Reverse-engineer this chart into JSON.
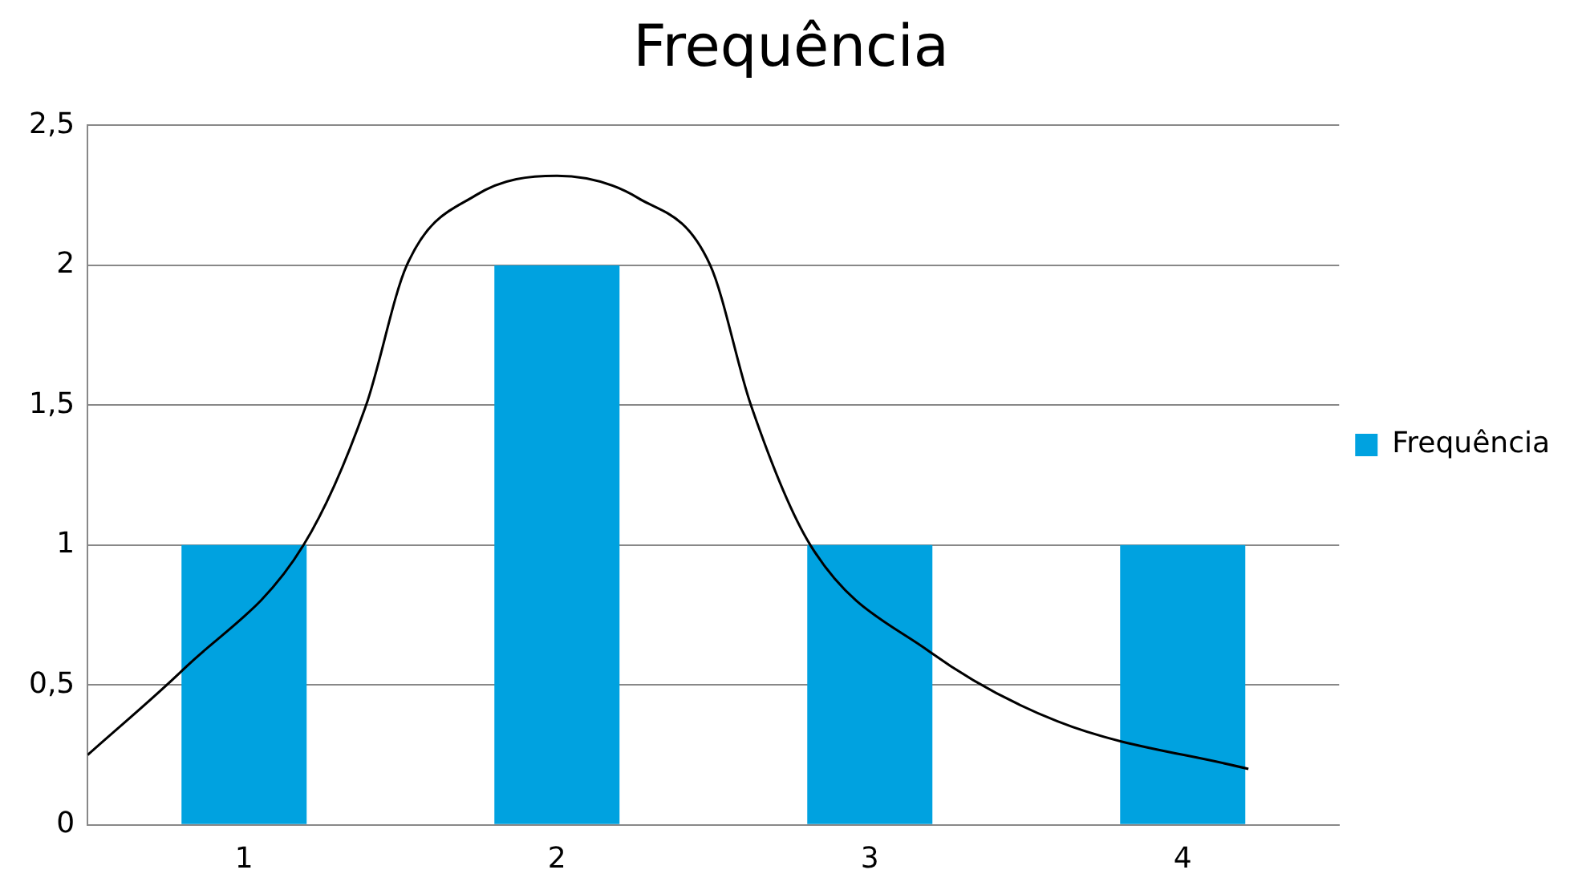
{
  "chart_data": {
    "type": "bar",
    "title": "Frequência",
    "x": [
      1,
      2,
      3,
      4
    ],
    "xlim": [
      0.5,
      4.5
    ],
    "xticks": [
      1,
      2,
      3,
      4
    ],
    "ylim": [
      0,
      2.5
    ],
    "yticks": [
      0,
      {
        "value": 0.5,
        "label": "0,5"
      },
      1,
      {
        "value": 1.5,
        "label": "1,5"
      },
      2,
      {
        "value": 2.5,
        "label": "2,5"
      }
    ],
    "series": [
      {
        "name": "Frequência",
        "color": "#00a2e0",
        "values": [
          1,
          2,
          1,
          1
        ]
      },
      {
        "type": "line",
        "color": "#000000",
        "x": [
          0.5,
          0.81,
          1.19,
          1.39,
          1.52,
          1.74,
          2.0,
          2.26,
          2.49,
          2.62,
          2.81,
          3.19,
          3.6,
          4.21
        ],
        "values": [
          0.25,
          0.56,
          1.0,
          1.5,
          2.0,
          2.25,
          2.32,
          2.24,
          2.0,
          1.5,
          1.0,
          0.62,
          0.37,
          0.2
        ]
      }
    ],
    "grid": "y",
    "legend": "right",
    "marker": "none",
    "line_style": "solid"
  }
}
